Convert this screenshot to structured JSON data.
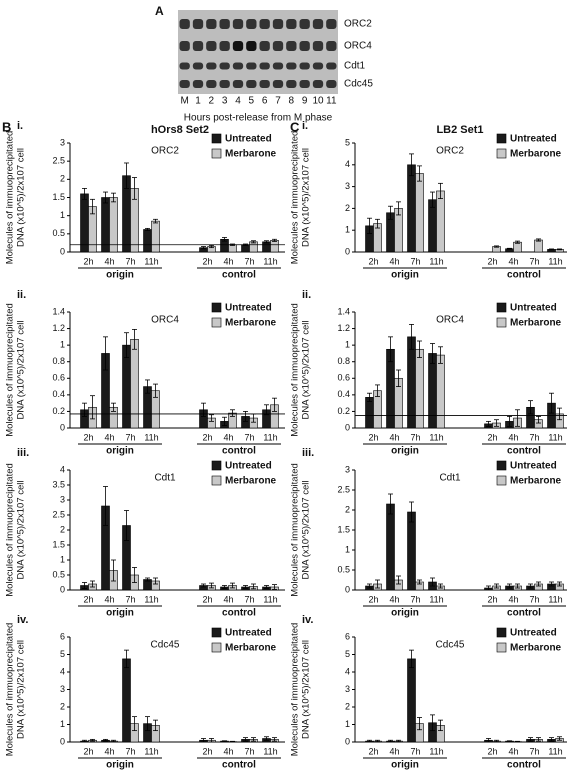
{
  "blot": {
    "label": "A",
    "rows": [
      "ORC2",
      "ORC4",
      "Cdt1",
      "Cdc45"
    ],
    "lanes": [
      "M",
      "1",
      "2",
      "3",
      "4",
      "5",
      "6",
      "7",
      "8",
      "9",
      "10",
      "11"
    ],
    "caption": "Hours post-release from M phase"
  },
  "panels": [
    {
      "label": "B",
      "title": "hOrs8 Set2"
    },
    {
      "label": "C",
      "title": "LB2 Set1"
    }
  ],
  "chart_data": [
    {
      "type": "bar",
      "panel_label": "i.",
      "title": "ORC2",
      "ylabel": [
        "Molecules of immuoprecipitated",
        "DNA (x10^5)/2x107 cell"
      ],
      "categories": [
        "2h",
        "4h",
        "7h",
        "11h",
        "2h",
        "4h",
        "7h",
        "11h"
      ],
      "groups": [
        "origin",
        "control"
      ],
      "series": [
        {
          "name": "Untreated",
          "color": "#1a1a1a",
          "values": [
            1.6,
            1.5,
            2.1,
            0.62,
            0.12,
            0.35,
            0.2,
            0.28
          ],
          "errors": [
            0.15,
            0.15,
            0.35,
            0.03,
            0.03,
            0.05,
            0.02,
            0.03
          ]
        },
        {
          "name": "Merbarone",
          "color": "#c8c8c8",
          "values": [
            1.25,
            1.5,
            1.75,
            0.85,
            0.15,
            0.2,
            0.28,
            0.32
          ],
          "errors": [
            0.2,
            0.12,
            0.3,
            0.05,
            0.03,
            0.02,
            0.03,
            0.03
          ]
        }
      ],
      "ylim": [
        0,
        3
      ],
      "yticks": [
        0,
        0.5,
        1,
        1.5,
        2,
        2.5,
        3
      ],
      "hline": 0.2,
      "legend": "upper right"
    },
    {
      "type": "bar",
      "panel_label": "ii.",
      "title": "ORC4",
      "ylabel": [
        "Molecules of immuoprecipitated",
        "DNA (x10^5)/2x107 cell"
      ],
      "categories": [
        "2h",
        "4h",
        "7h",
        "11h",
        "2h",
        "4h",
        "7h",
        "11h"
      ],
      "groups": [
        "origin",
        "control"
      ],
      "series": [
        {
          "name": "Untreated",
          "color": "#1a1a1a",
          "values": [
            0.22,
            0.9,
            1.0,
            0.5,
            0.22,
            0.08,
            0.14,
            0.22
          ],
          "errors": [
            0.08,
            0.2,
            0.15,
            0.08,
            0.08,
            0.05,
            0.06,
            0.06
          ]
        },
        {
          "name": "Merbarone",
          "color": "#c8c8c8",
          "values": [
            0.25,
            0.25,
            1.07,
            0.45,
            0.12,
            0.18,
            0.12,
            0.28
          ],
          "errors": [
            0.14,
            0.05,
            0.12,
            0.08,
            0.04,
            0.04,
            0.05,
            0.08
          ]
        }
      ],
      "ylim": [
        0,
        1.4
      ],
      "yticks": [
        0,
        0.2,
        0.4,
        0.6,
        0.8,
        1,
        1.2,
        1.4
      ],
      "hline": 0.17,
      "legend": "upper right"
    },
    {
      "type": "bar",
      "panel_label": "iii.",
      "title": "Cdt1",
      "ylabel": [
        "Molecules of immuoprecipitated",
        "DNA (x10^5)/2x107 cell"
      ],
      "categories": [
        "2h",
        "4h",
        "7h",
        "11h",
        "2h",
        "4h",
        "7h",
        "11h"
      ],
      "groups": [
        "origin",
        "control"
      ],
      "series": [
        {
          "name": "Untreated",
          "color": "#1a1a1a",
          "values": [
            0.15,
            2.8,
            2.15,
            0.35,
            0.15,
            0.1,
            0.1,
            0.1
          ],
          "errors": [
            0.1,
            0.65,
            0.5,
            0.05,
            0.05,
            0.05,
            0.05,
            0.05
          ]
        },
        {
          "name": "Merbarone",
          "color": "#c8c8c8",
          "values": [
            0.2,
            0.65,
            0.5,
            0.3,
            0.15,
            0.15,
            0.12,
            0.1
          ],
          "errors": [
            0.1,
            0.35,
            0.25,
            0.1,
            0.08,
            0.08,
            0.08,
            0.08
          ]
        }
      ],
      "ylim": [
        0,
        4
      ],
      "yticks": [
        0,
        0.5,
        1,
        1.5,
        2,
        2.5,
        3,
        3.5,
        4
      ],
      "legend": "upper right"
    },
    {
      "type": "bar",
      "panel_label": "iv.",
      "title": "Cdc45",
      "ylabel": [
        "Molecules of immuoprecipitated",
        "DNA (x10^5)/2x107 cell"
      ],
      "categories": [
        "2h",
        "4h",
        "7h",
        "11h",
        "2h",
        "4h",
        "7h",
        "11h"
      ],
      "groups": [
        "origin",
        "control"
      ],
      "series": [
        {
          "name": "Untreated",
          "color": "#1a1a1a",
          "values": [
            0.05,
            0.1,
            4.75,
            1.05,
            0.1,
            0.05,
            0.15,
            0.2
          ],
          "errors": [
            0.05,
            0.05,
            0.5,
            0.4,
            0.1,
            0.02,
            0.1,
            0.1
          ]
        },
        {
          "name": "Merbarone",
          "color": "#c8c8c8",
          "values": [
            0.1,
            0.05,
            1.05,
            0.95,
            0.1,
            0.02,
            0.15,
            0.15
          ],
          "errors": [
            0.05,
            0.05,
            0.4,
            0.3,
            0.1,
            0.02,
            0.1,
            0.1
          ]
        }
      ],
      "ylim": [
        0,
        6
      ],
      "yticks": [
        0,
        1,
        2,
        3,
        4,
        5,
        6
      ],
      "legend": "upper right"
    },
    {
      "type": "bar",
      "panel_label": "i.",
      "title": "ORC2",
      "ylabel": [
        "Molecules of immuoprecipitated",
        "DNA (x10^5)/2x107 cell"
      ],
      "categories": [
        "2h",
        "4h",
        "7h",
        "11h",
        "2h",
        "4h",
        "7h",
        "11h"
      ],
      "groups": [
        "origin",
        "control"
      ],
      "series": [
        {
          "name": "Untreated",
          "color": "#1a1a1a",
          "values": [
            1.2,
            1.8,
            4.0,
            2.4,
            0,
            0.15,
            0,
            0.12
          ],
          "errors": [
            0.35,
            0.3,
            0.5,
            0.35,
            0,
            0.02,
            0,
            0.02
          ]
        },
        {
          "name": "Merbarone",
          "color": "#c8c8c8",
          "values": [
            1.3,
            2.0,
            3.6,
            2.8,
            0.25,
            0.45,
            0.55,
            0.12
          ],
          "errors": [
            0.2,
            0.3,
            0.35,
            0.35,
            0.03,
            0.05,
            0.05,
            0.02
          ]
        }
      ],
      "ylim": [
        0,
        5
      ],
      "yticks": [
        0,
        1,
        2,
        3,
        4,
        5
      ],
      "legend": "upper right"
    },
    {
      "type": "bar",
      "panel_label": "ii.",
      "title": "ORC4",
      "ylabel": [
        "Molecules of immuoprecipitated",
        "DNA (x10^5)/2x107 cell"
      ],
      "categories": [
        "2h",
        "4h",
        "7h",
        "11h",
        "2h",
        "4h",
        "7h",
        "11h"
      ],
      "groups": [
        "origin",
        "control"
      ],
      "series": [
        {
          "name": "Untreated",
          "color": "#1a1a1a",
          "values": [
            0.37,
            0.95,
            1.1,
            0.9,
            0.05,
            0.08,
            0.25,
            0.3
          ],
          "errors": [
            0.05,
            0.15,
            0.15,
            0.12,
            0.03,
            0.06,
            0.08,
            0.12
          ]
        },
        {
          "name": "Merbarone",
          "color": "#c8c8c8",
          "values": [
            0.45,
            0.6,
            0.95,
            0.88,
            0.06,
            0.12,
            0.1,
            0.17
          ],
          "errors": [
            0.07,
            0.1,
            0.1,
            0.1,
            0.04,
            0.1,
            0.04,
            0.07
          ]
        }
      ],
      "ylim": [
        0,
        1.4
      ],
      "yticks": [
        0,
        0.2,
        0.4,
        0.6,
        0.8,
        1,
        1.2,
        1.4
      ],
      "hline": 0.15,
      "legend": "upper right"
    },
    {
      "type": "bar",
      "panel_label": "iii.",
      "title": "Cdt1",
      "ylabel": [
        "Molecules of immuoprecipitated",
        "DNA (x10^5)/2x107 cell"
      ],
      "categories": [
        "2h",
        "4h",
        "7h",
        "11h",
        "2h",
        "4h",
        "7h",
        "11h"
      ],
      "groups": [
        "origin",
        "control"
      ],
      "series": [
        {
          "name": "Untreated",
          "color": "#1a1a1a",
          "values": [
            0.1,
            2.15,
            1.95,
            0.2,
            0.05,
            0.1,
            0.1,
            0.15
          ],
          "errors": [
            0.05,
            0.25,
            0.25,
            0.1,
            0.05,
            0.05,
            0.05,
            0.05
          ]
        },
        {
          "name": "Merbarone",
          "color": "#c8c8c8",
          "values": [
            0.15,
            0.25,
            0.2,
            0.1,
            0.1,
            0.1,
            0.15,
            0.15
          ],
          "errors": [
            0.1,
            0.1,
            0.05,
            0.05,
            0.05,
            0.05,
            0.05,
            0.05
          ]
        }
      ],
      "ylim": [
        0,
        3
      ],
      "yticks": [
        0,
        0.5,
        1,
        1.5,
        2,
        2.5,
        3
      ],
      "legend": "upper right"
    },
    {
      "type": "bar",
      "panel_label": "iv.",
      "title": "Cdc45",
      "ylabel": [
        "Molecules of immuoprecipitated",
        "DNA (x10^5)/2x107 cell"
      ],
      "categories": [
        "2h",
        "4h",
        "7h",
        "11h",
        "2h",
        "4h",
        "7h",
        "11h"
      ],
      "groups": [
        "origin",
        "control"
      ],
      "series": [
        {
          "name": "Untreated",
          "color": "#1a1a1a",
          "values": [
            0.05,
            0.05,
            4.75,
            1.1,
            0.1,
            0.05,
            0.15,
            0.15
          ],
          "errors": [
            0.05,
            0.05,
            0.5,
            0.45,
            0.1,
            0.02,
            0.1,
            0.1
          ]
        },
        {
          "name": "Merbarone",
          "color": "#c8c8c8",
          "values": [
            0.05,
            0.05,
            1.05,
            0.95,
            0.05,
            0.02,
            0.15,
            0.2
          ],
          "errors": [
            0.05,
            0.05,
            0.35,
            0.3,
            0.05,
            0.02,
            0.1,
            0.1
          ]
        }
      ],
      "ylim": [
        0,
        6
      ],
      "yticks": [
        0,
        1,
        2,
        3,
        4,
        5,
        6
      ],
      "legend": "upper right"
    }
  ]
}
